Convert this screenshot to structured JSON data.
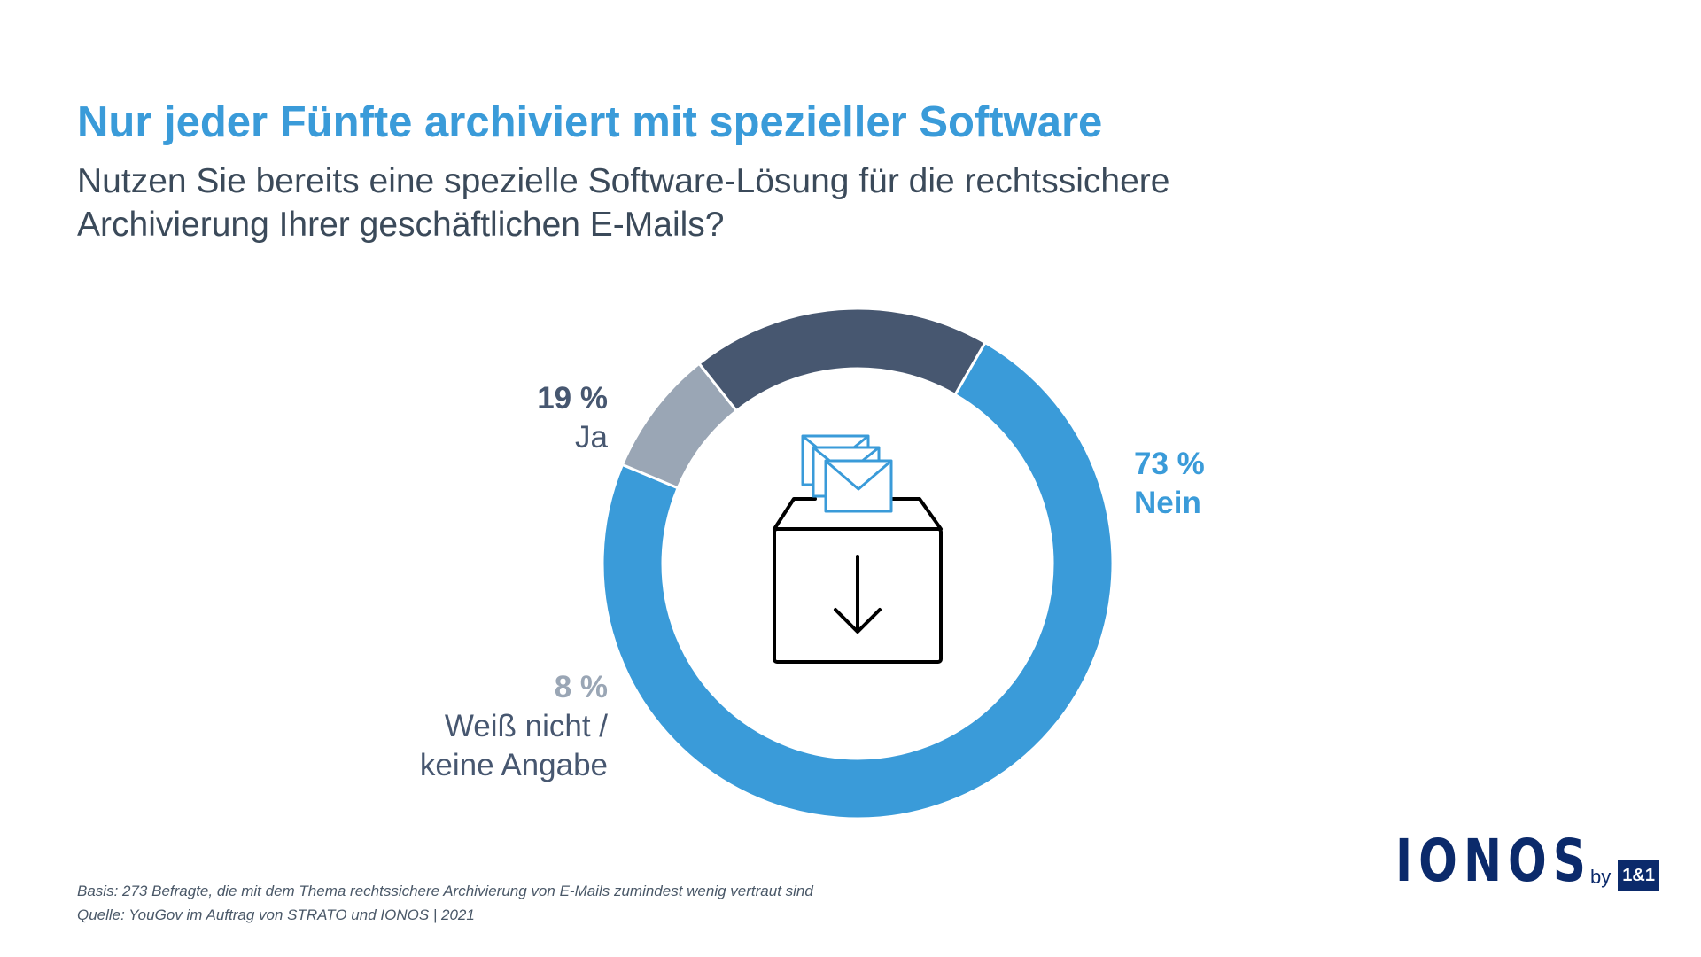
{
  "header": {
    "title": "Nur jeder Fünfte archiviert mit spezieller Software",
    "subtitle": "Nutzen Sie bereits eine spezielle Software-Lösung für die rechtssichere Archivierung Ihrer geschäftlichen E-Mails?"
  },
  "chart_data": {
    "type": "pie",
    "slices": [
      {
        "label": "Nein",
        "value": 73,
        "value_label": "73 %",
        "color": "#3a9bd9"
      },
      {
        "label": "Weiß nicht / keine Angabe",
        "label_line1": "Weiß nicht /",
        "label_line2": "keine Angabe",
        "value": 8,
        "value_label": "8 %",
        "color": "#9aa6b5"
      },
      {
        "label": "Ja",
        "value": 19,
        "value_label": "19 %",
        "color": "#475770"
      }
    ]
  },
  "center_icon": "ballot-box-with-envelopes-icon",
  "footer": {
    "basis": "Basis: 273 Befragte, die mit dem Thema rechtssichere Archivierung von E-Mails zumindest wenig vertraut sind",
    "source": "Quelle: YouGov im Auftrag von STRATO und IONOS | 2021"
  },
  "logo": {
    "word": "IONOS",
    "by": "by",
    "badge": "1&1",
    "color": "#0b2a6b"
  }
}
